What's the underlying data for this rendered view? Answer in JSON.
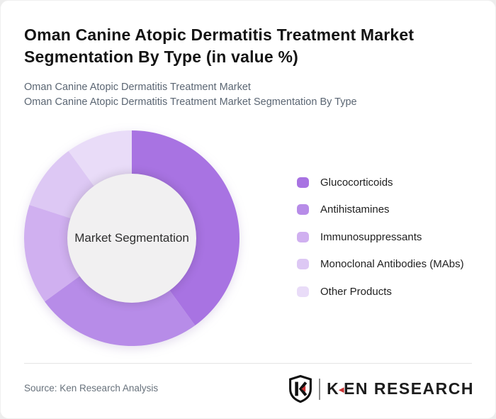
{
  "page": {
    "title": "Oman Canine Atopic Dermatitis Treatment Market Segmentation By Type (in value %)"
  },
  "subtitles": {
    "line1": "Oman Canine Atopic Dermatitis Treatment Market",
    "line2": "Oman Canine Atopic Dermatitis Treatment Market Segmentation By Type"
  },
  "chart_data": {
    "type": "pie",
    "variant": "donut",
    "title": "Oman Canine Atopic Dermatitis Treatment Market Segmentation By Type (in value %)",
    "center_label": "Market Segmentation",
    "categories": [
      "Glucocorticoids",
      "Antihistamines",
      "Immunosuppressants",
      "Monoclonal Antibodies (MAbs)",
      "Other Products"
    ],
    "values": [
      40,
      25,
      15,
      10,
      10
    ],
    "unit": "value %",
    "colors": [
      "#a873e2",
      "#b78ce8",
      "#d0b0f0",
      "#ddc8f4",
      "#e9dcf8"
    ],
    "start_angle_deg": -90,
    "direction": "clockwise",
    "outer_radius": 152,
    "inner_radius": 91,
    "center_fill": "#f1f0f1",
    "legend_position": "right"
  },
  "footer": {
    "source": "Source: Ken Research Analysis",
    "logo": {
      "k": "K",
      "red_triangle": "◄",
      "rest": "EN RESEARCH",
      "accent_color": "#cc3333"
    }
  }
}
